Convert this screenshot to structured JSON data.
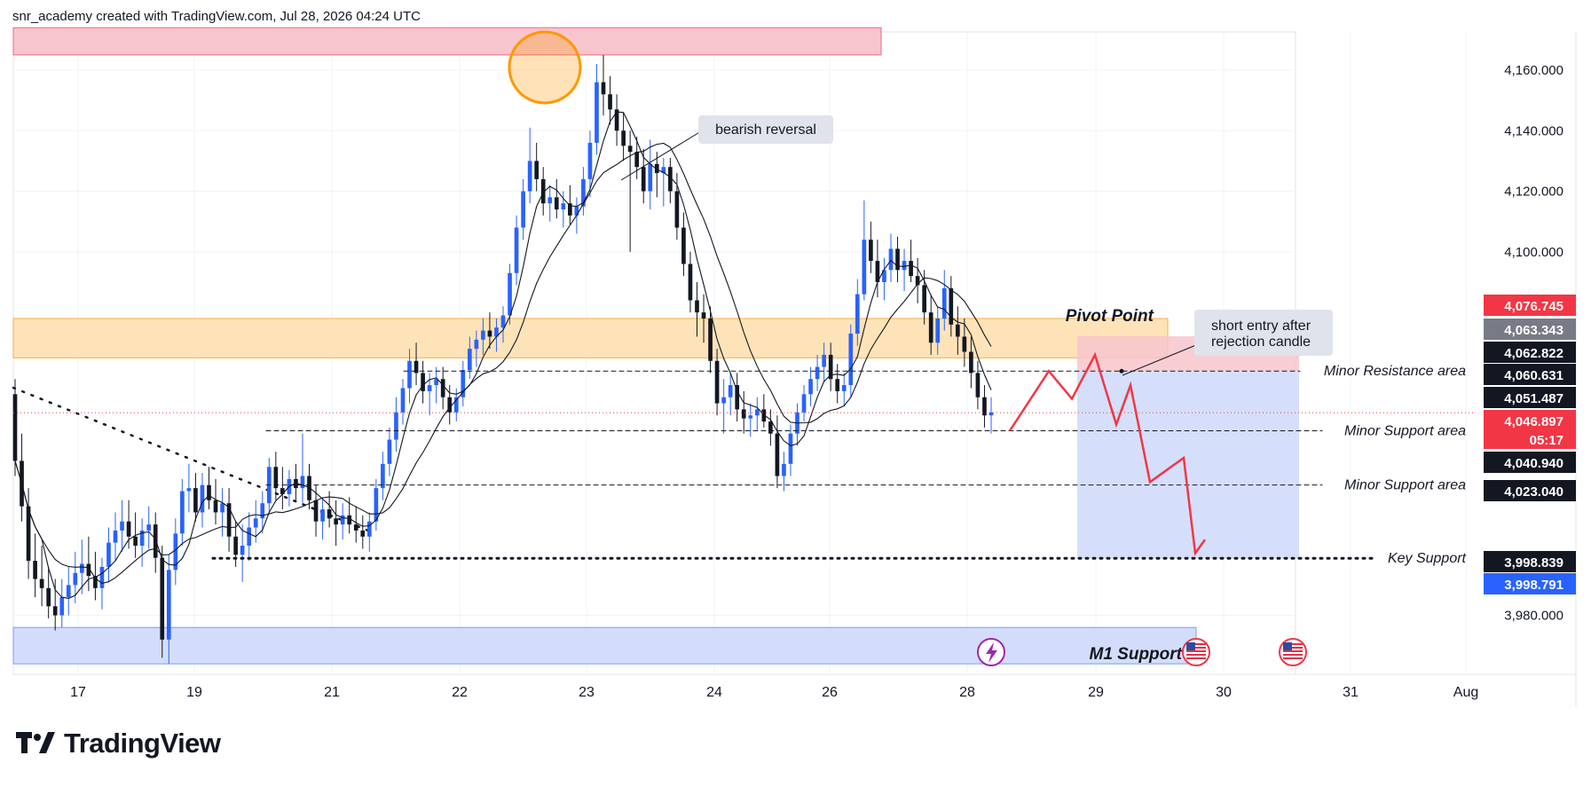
{
  "header": {
    "attribution": "snr_academy created with TradingView.com, Jul 28, 2026 04:24 UTC"
  },
  "brand": {
    "name": "TradingView",
    "icon": "tradingview-logo-icon"
  },
  "chart_data": {
    "type": "candlestick",
    "price_axis": {
      "range": [
        3962,
        4172
      ],
      "ticks": [
        "3,980.000",
        "4,100.000",
        "4,120.000",
        "4,140.000",
        "4,160.000"
      ]
    },
    "time_axis": {
      "labels": [
        "17",
        "19",
        "21",
        "22",
        "23",
        "24",
        "26",
        "28",
        "29",
        "30",
        "31",
        "Aug"
      ]
    },
    "price_labels": [
      {
        "text": "4,076.745",
        "price": 4076.745,
        "bg": "#f23645",
        "fg": "#ffffff"
      },
      {
        "text": "4,063.343",
        "price": 4063.343,
        "bg": "#787b86",
        "fg": "#ffffff"
      },
      {
        "text": "4,062.822",
        "price": 4062.822,
        "bg": "#131722",
        "fg": "#ffffff"
      },
      {
        "text": "4,060.631",
        "price": 4060.631,
        "bg": "#131722",
        "fg": "#ffffff"
      },
      {
        "text": "4,051.487",
        "price": 4051.487,
        "bg": "#131722",
        "fg": "#ffffff"
      },
      {
        "text": "4,046.897",
        "price": 4046.897,
        "bg": "#f23645",
        "fg": "#ffffff"
      },
      {
        "text": "05:17",
        "price": 4043,
        "bg": "#f23645",
        "fg": "#ffffff"
      },
      {
        "text": "4,040.940",
        "price": 4040.94,
        "bg": "#131722",
        "fg": "#ffffff"
      },
      {
        "text": "4,023.040",
        "price": 4023.04,
        "bg": "#131722",
        "fg": "#ffffff"
      },
      {
        "text": "3,998.839",
        "price": 3998.839,
        "bg": "#131722",
        "fg": "#ffffff"
      },
      {
        "text": "3,998.791",
        "price": 3998.791,
        "bg": "#2962ff",
        "fg": "#ffffff"
      }
    ],
    "zones": [
      {
        "name": "top-resistance-zone",
        "label": "",
        "top": 4174,
        "bottom": 4165,
        "color": "#f7c5cd"
      },
      {
        "name": "pivot-point-zone",
        "label": "Pivot Point",
        "top": 4078,
        "bottom": 4065,
        "color": "#ffe3b8"
      },
      {
        "name": "m1-support-zone",
        "label": "M1 Support",
        "top": 3976,
        "bottom": 3964,
        "color": "#d3ddfb"
      }
    ],
    "levels": [
      {
        "label": "Minor Resistance area",
        "price": 4060.631,
        "style": "dashed"
      },
      {
        "label": "Minor Support area",
        "price": 4040.94,
        "style": "dashed"
      },
      {
        "label": "Minor Support area",
        "price": 4023.04,
        "style": "dashed"
      },
      {
        "label": "Key Support",
        "price": 3998.839,
        "style": "dotted"
      }
    ],
    "annotations": [
      {
        "text": "bearish reversal"
      },
      {
        "text": "short entry after"
      },
      {
        "text": "rejection candle"
      }
    ],
    "position": {
      "type": "short",
      "entry": 4060.631,
      "stop": 4063.343,
      "target": 3998.839
    },
    "candles": [
      [
        4053,
        4058,
        4026,
        4031
      ],
      [
        4031,
        4040,
        4011,
        4016
      ],
      [
        4016,
        4022,
        3992,
        3998
      ],
      [
        3998,
        4007,
        3986,
        3992
      ],
      [
        3992,
        4003,
        3983,
        3989
      ],
      [
        3989,
        3996,
        3979,
        3983
      ],
      [
        3983,
        3992,
        3975,
        3980
      ],
      [
        3980,
        3992,
        3976,
        3986
      ],
      [
        3986,
        3996,
        3980,
        3990
      ],
      [
        3990,
        4001,
        3984,
        3994
      ],
      [
        3994,
        4005,
        3987,
        3997
      ],
      [
        3997,
        4006,
        3988,
        3993
      ],
      [
        3993,
        4001,
        3985,
        3989
      ],
      [
        3989,
        3999,
        3982,
        3996
      ],
      [
        3996,
        4009,
        3991,
        4004
      ],
      [
        4004,
        4014,
        3998,
        4008
      ],
      [
        4008,
        4018,
        4001,
        4011
      ],
      [
        4011,
        4018,
        4002,
        4006
      ],
      [
        4006,
        4014,
        3999,
        4003
      ],
      [
        4003,
        4012,
        3996,
        4008
      ],
      [
        4008,
        4016,
        4002,
        4010
      ],
      [
        4010,
        4014,
        3994,
        3999
      ],
      [
        3999,
        4003,
        3966,
        3972
      ],
      [
        3972,
        4000,
        3964,
        3995
      ],
      [
        3995,
        4012,
        3990,
        4007
      ],
      [
        4007,
        4025,
        4003,
        4021
      ],
      [
        4021,
        4030,
        4014,
        4022
      ],
      [
        4022,
        4027,
        4011,
        4014
      ],
      [
        4014,
        4027,
        4009,
        4023
      ],
      [
        4023,
        4029,
        4015,
        4018
      ],
      [
        4018,
        4025,
        4010,
        4014
      ],
      [
        4014,
        4022,
        4006,
        4017
      ],
      [
        4017,
        4022,
        4001,
        4006
      ],
      [
        4006,
        4011,
        3996,
        4000
      ],
      [
        4000,
        4010,
        3991,
        4003
      ],
      [
        4003,
        4014,
        3998,
        4009
      ],
      [
        4009,
        4018,
        4004,
        4012
      ],
      [
        4012,
        4021,
        4007,
        4017
      ],
      [
        4017,
        4032,
        4014,
        4029
      ],
      [
        4029,
        4034,
        4018,
        4022
      ],
      [
        4022,
        4029,
        4015,
        4020
      ],
      [
        4020,
        4028,
        4016,
        4025
      ],
      [
        4025,
        4030,
        4018,
        4022
      ],
      [
        4022,
        4040,
        4017,
        4026
      ],
      [
        4026,
        4030,
        4015,
        4018
      ],
      [
        4018,
        4023,
        4006,
        4011
      ],
      [
        4011,
        4019,
        4005,
        4015
      ],
      [
        4015,
        4021,
        4009,
        4012
      ],
      [
        4012,
        4018,
        4003,
        4010
      ],
      [
        4010,
        4017,
        4005,
        4013
      ],
      [
        4013,
        4019,
        4007,
        4010
      ],
      [
        4010,
        4016,
        4004,
        4008
      ],
      [
        4008,
        4013,
        4002,
        4006
      ],
      [
        4006,
        4014,
        4001,
        4011
      ],
      [
        4011,
        4025,
        4008,
        4022
      ],
      [
        4022,
        4034,
        4018,
        4030
      ],
      [
        4030,
        4042,
        4026,
        4038
      ],
      [
        4038,
        4052,
        4034,
        4047
      ],
      [
        4047,
        4058,
        4043,
        4055
      ],
      [
        4055,
        4068,
        4050,
        4064
      ],
      [
        4064,
        4070,
        4056,
        4060
      ],
      [
        4060,
        4064,
        4050,
        4054
      ],
      [
        4054,
        4060,
        4046,
        4056
      ],
      [
        4056,
        4062,
        4050,
        4058
      ],
      [
        4058,
        4062,
        4048,
        4052
      ],
      [
        4052,
        4056,
        4043,
        4047
      ],
      [
        4047,
        4055,
        4044,
        4052
      ],
      [
        4052,
        4064,
        4049,
        4061
      ],
      [
        4061,
        4072,
        4058,
        4068
      ],
      [
        4068,
        4074,
        4062,
        4071
      ],
      [
        4071,
        4078,
        4066,
        4074
      ],
      [
        4074,
        4080,
        4068,
        4072
      ],
      [
        4072,
        4078,
        4067,
        4075
      ],
      [
        4075,
        4082,
        4070,
        4079
      ],
      [
        4079,
        4096,
        4076,
        4093
      ],
      [
        4093,
        4112,
        4089,
        4108
      ],
      [
        4108,
        4124,
        4104,
        4120
      ],
      [
        4120,
        4141,
        4116,
        4130
      ],
      [
        4130,
        4136,
        4120,
        4124
      ],
      [
        4124,
        4128,
        4112,
        4116
      ],
      [
        4116,
        4122,
        4110,
        4118
      ],
      [
        4118,
        4124,
        4111,
        4114
      ],
      [
        4114,
        4120,
        4108,
        4116
      ],
      [
        4116,
        4122,
        4109,
        4112
      ],
      [
        4112,
        4118,
        4106,
        4115
      ],
      [
        4115,
        4128,
        4112,
        4124
      ],
      [
        4124,
        4140,
        4118,
        4136
      ],
      [
        4136,
        4162,
        4132,
        4156
      ],
      [
        4156,
        4165,
        4145,
        4152
      ],
      [
        4152,
        4158,
        4142,
        4147
      ],
      [
        4147,
        4152,
        4135,
        4140
      ],
      [
        4140,
        4146,
        4130,
        4135
      ],
      [
        4135,
        4140,
        4100,
        4133
      ],
      [
        4133,
        4138,
        4124,
        4128
      ],
      [
        4128,
        4134,
        4116,
        4120
      ],
      [
        4120,
        4137,
        4114,
        4129
      ],
      [
        4129,
        4133,
        4118,
        4126
      ],
      [
        4126,
        4131,
        4115,
        4128
      ],
      [
        4128,
        4131,
        4116,
        4120
      ],
      [
        4120,
        4126,
        4104,
        4108
      ],
      [
        4108,
        4113,
        4092,
        4096
      ],
      [
        4096,
        4100,
        4080,
        4084
      ],
      [
        4084,
        4090,
        4072,
        4080
      ],
      [
        4080,
        4086,
        4070,
        4078
      ],
      [
        4078,
        4082,
        4060,
        4064
      ],
      [
        4064,
        4068,
        4046,
        4050
      ],
      [
        4050,
        4058,
        4040,
        4052
      ],
      [
        4052,
        4060,
        4046,
        4056
      ],
      [
        4056,
        4060,
        4044,
        4048
      ],
      [
        4048,
        4054,
        4040,
        4045
      ],
      [
        4045,
        4050,
        4039,
        4046
      ],
      [
        4046,
        4052,
        4041,
        4048
      ],
      [
        4048,
        4053,
        4042,
        4044
      ],
      [
        4044,
        4048,
        4036,
        4040
      ],
      [
        4040,
        4046,
        4022,
        4026
      ],
      [
        4026,
        4034,
        4021,
        4030
      ],
      [
        4030,
        4043,
        4026,
        4040
      ],
      [
        4040,
        4050,
        4036,
        4047
      ],
      [
        4047,
        4056,
        4044,
        4053
      ],
      [
        4053,
        4062,
        4049,
        4058
      ],
      [
        4058,
        4066,
        4054,
        4062
      ],
      [
        4062,
        4070,
        4057,
        4066
      ],
      [
        4066,
        4070,
        4054,
        4058
      ],
      [
        4058,
        4063,
        4050,
        4054
      ],
      [
        4054,
        4060,
        4049,
        4056
      ],
      [
        4056,
        4076,
        4052,
        4073
      ],
      [
        4073,
        4091,
        4069,
        4086
      ],
      [
        4086,
        4117,
        4084,
        4104
      ],
      [
        4104,
        4110,
        4093,
        4097
      ],
      [
        4097,
        4104,
        4085,
        4090
      ],
      [
        4090,
        4098,
        4084,
        4094
      ],
      [
        4094,
        4106,
        4090,
        4101
      ],
      [
        4101,
        4105,
        4090,
        4094
      ],
      [
        4094,
        4101,
        4087,
        4097
      ],
      [
        4097,
        4104,
        4090,
        4092
      ],
      [
        4092,
        4098,
        4083,
        4089
      ],
      [
        4089,
        4094,
        4076,
        4080
      ],
      [
        4080,
        4086,
        4066,
        4070
      ],
      [
        4070,
        4082,
        4066,
        4078
      ],
      [
        4078,
        4094,
        4074,
        4088
      ],
      [
        4088,
        4092,
        4072,
        4076
      ],
      [
        4076,
        4082,
        4066,
        4072
      ],
      [
        4072,
        4078,
        4062,
        4067
      ],
      [
        4067,
        4072,
        4055,
        4060
      ],
      [
        4060,
        4064,
        4048,
        4052
      ],
      [
        4052,
        4056,
        4042,
        4046
      ],
      [
        4046,
        4052,
        4040,
        4047
      ]
    ],
    "moving_averages": [
      {
        "name": "ma-fast",
        "period": 5,
        "color": "#131722",
        "width": 1.1
      },
      {
        "name": "ma-slow",
        "period": 12,
        "color": "#131722",
        "width": 1.1
      }
    ],
    "colors": {
      "up": "#2962ff",
      "down": "#131722",
      "projection": "#f23645",
      "marker": "#ff9800",
      "profit": "#d3ddfb",
      "risk": "#f7c5cd"
    },
    "icons": [
      "spark-icon",
      "us-flag-icon"
    ]
  }
}
